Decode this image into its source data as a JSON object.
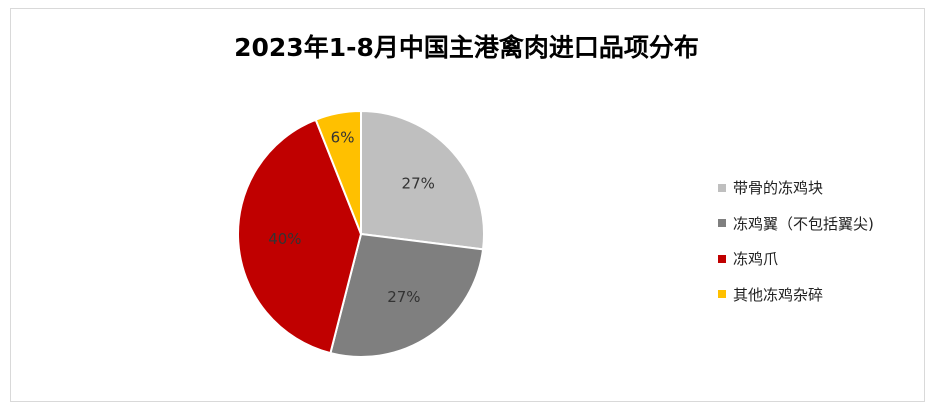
{
  "chart_data": {
    "type": "pie",
    "title": "2023年1-8月中国主港禽肉进口品项分布",
    "start_angle": "12 o'clock",
    "direction": "clockwise",
    "legend_position": "right",
    "categories": [
      "带骨的冻鸡块",
      "冻鸡翼（不包括翼尖)",
      "冻鸡爪",
      "其他冻鸡杂碎"
    ],
    "values": [
      27,
      27,
      40,
      6
    ],
    "labels": [
      "27%",
      "27%",
      "40%",
      "6%"
    ],
    "colors": [
      "#bfbfbf",
      "#7f7f7f",
      "#c00000",
      "#ffc000"
    ]
  }
}
